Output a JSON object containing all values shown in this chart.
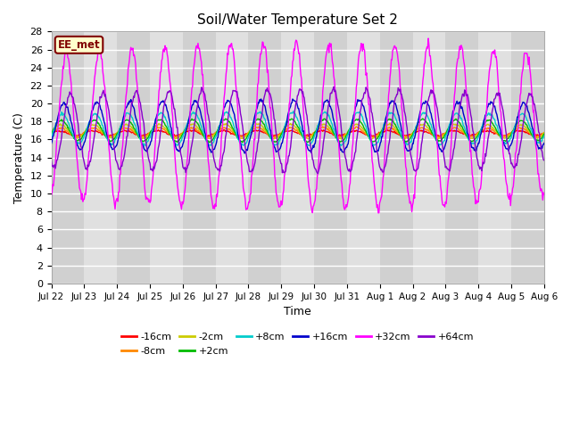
{
  "title": "Soil/Water Temperature Set 2",
  "xlabel": "Time",
  "ylabel": "Temperature (C)",
  "ylim": [
    0,
    28
  ],
  "yticks": [
    0,
    2,
    4,
    6,
    8,
    10,
    12,
    14,
    16,
    18,
    20,
    22,
    24,
    26,
    28
  ],
  "fig_bg_color": "#ffffff",
  "plot_bg_color": "#e0e0e0",
  "stripe_color1": "#d0d0d0",
  "stripe_color2": "#e0e0e0",
  "grid_color": "#ffffff",
  "label_box_text": "EE_met",
  "label_box_facecolor": "#ffffcc",
  "label_box_edgecolor": "#800000",
  "series": [
    {
      "label": "-16cm",
      "color": "#ff0000",
      "amplitude": 0.25,
      "base": 16.7,
      "phase": 0.0
    },
    {
      "label": "-8cm",
      "color": "#ff8800",
      "amplitude": 0.45,
      "base": 16.8,
      "phase": 0.15
    },
    {
      "label": "-2cm",
      "color": "#cccc00",
      "amplitude": 0.7,
      "base": 16.9,
      "phase": 0.25
    },
    {
      "label": "+2cm",
      "color": "#00bb00",
      "amplitude": 1.1,
      "base": 17.0,
      "phase": 0.35
    },
    {
      "label": "+8cm",
      "color": "#00cccc",
      "amplitude": 1.6,
      "base": 17.2,
      "phase": 0.55
    },
    {
      "label": "+16cm",
      "color": "#0000cc",
      "amplitude": 2.5,
      "base": 17.5,
      "phase": 0.85
    },
    {
      "label": "+32cm",
      "color": "#ff00ff",
      "amplitude": 8.0,
      "base": 17.5,
      "phase": 1.3
    },
    {
      "label": "+64cm",
      "color": "#8800cc",
      "amplitude": 4.0,
      "base": 17.0,
      "phase": 2.1
    }
  ],
  "xtick_labels": [
    "Jul 22",
    "Jul 23",
    "Jul 24",
    "Jul 25",
    "Jul 26",
    "Jul 27",
    "Jul 28",
    "Jul 29",
    "Jul 30",
    "Jul 31",
    "Aug 1",
    "Aug 2",
    "Aug 3",
    "Aug 4",
    "Aug 5",
    "Aug 6"
  ],
  "n_points": 720,
  "total_days": 15
}
